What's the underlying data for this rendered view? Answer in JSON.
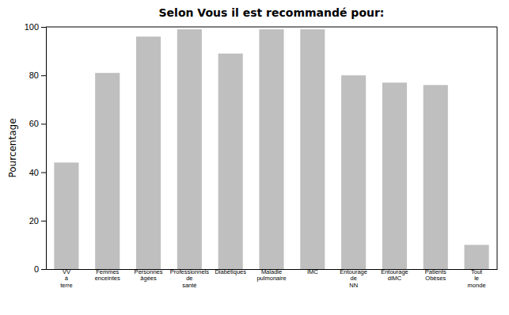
{
  "chart_data": {
    "type": "bar",
    "title": "Selon Vous il est recommandé pour:",
    "ylabel": "Pourcentage",
    "categories": [
      "VV\nà\nterre",
      "Femmes\nenceintes",
      "Personnes\nâgées",
      "Professionnels\nde\nsanté",
      "Diabétiques",
      "Maladie\npulmonaire",
      "IMC",
      "Entourage\nde\nNN",
      "Entourage\ndiMC",
      "Patients\nObèses",
      "Tout\nle\nmonde"
    ],
    "values": [
      44,
      81,
      96,
      99,
      89,
      99,
      99,
      80,
      77,
      76,
      10
    ],
    "color": "#bfbfbf",
    "ylim": [
      0,
      100
    ],
    "yticks": [
      0,
      20,
      40,
      60,
      80,
      100
    ],
    "grid": false
  }
}
